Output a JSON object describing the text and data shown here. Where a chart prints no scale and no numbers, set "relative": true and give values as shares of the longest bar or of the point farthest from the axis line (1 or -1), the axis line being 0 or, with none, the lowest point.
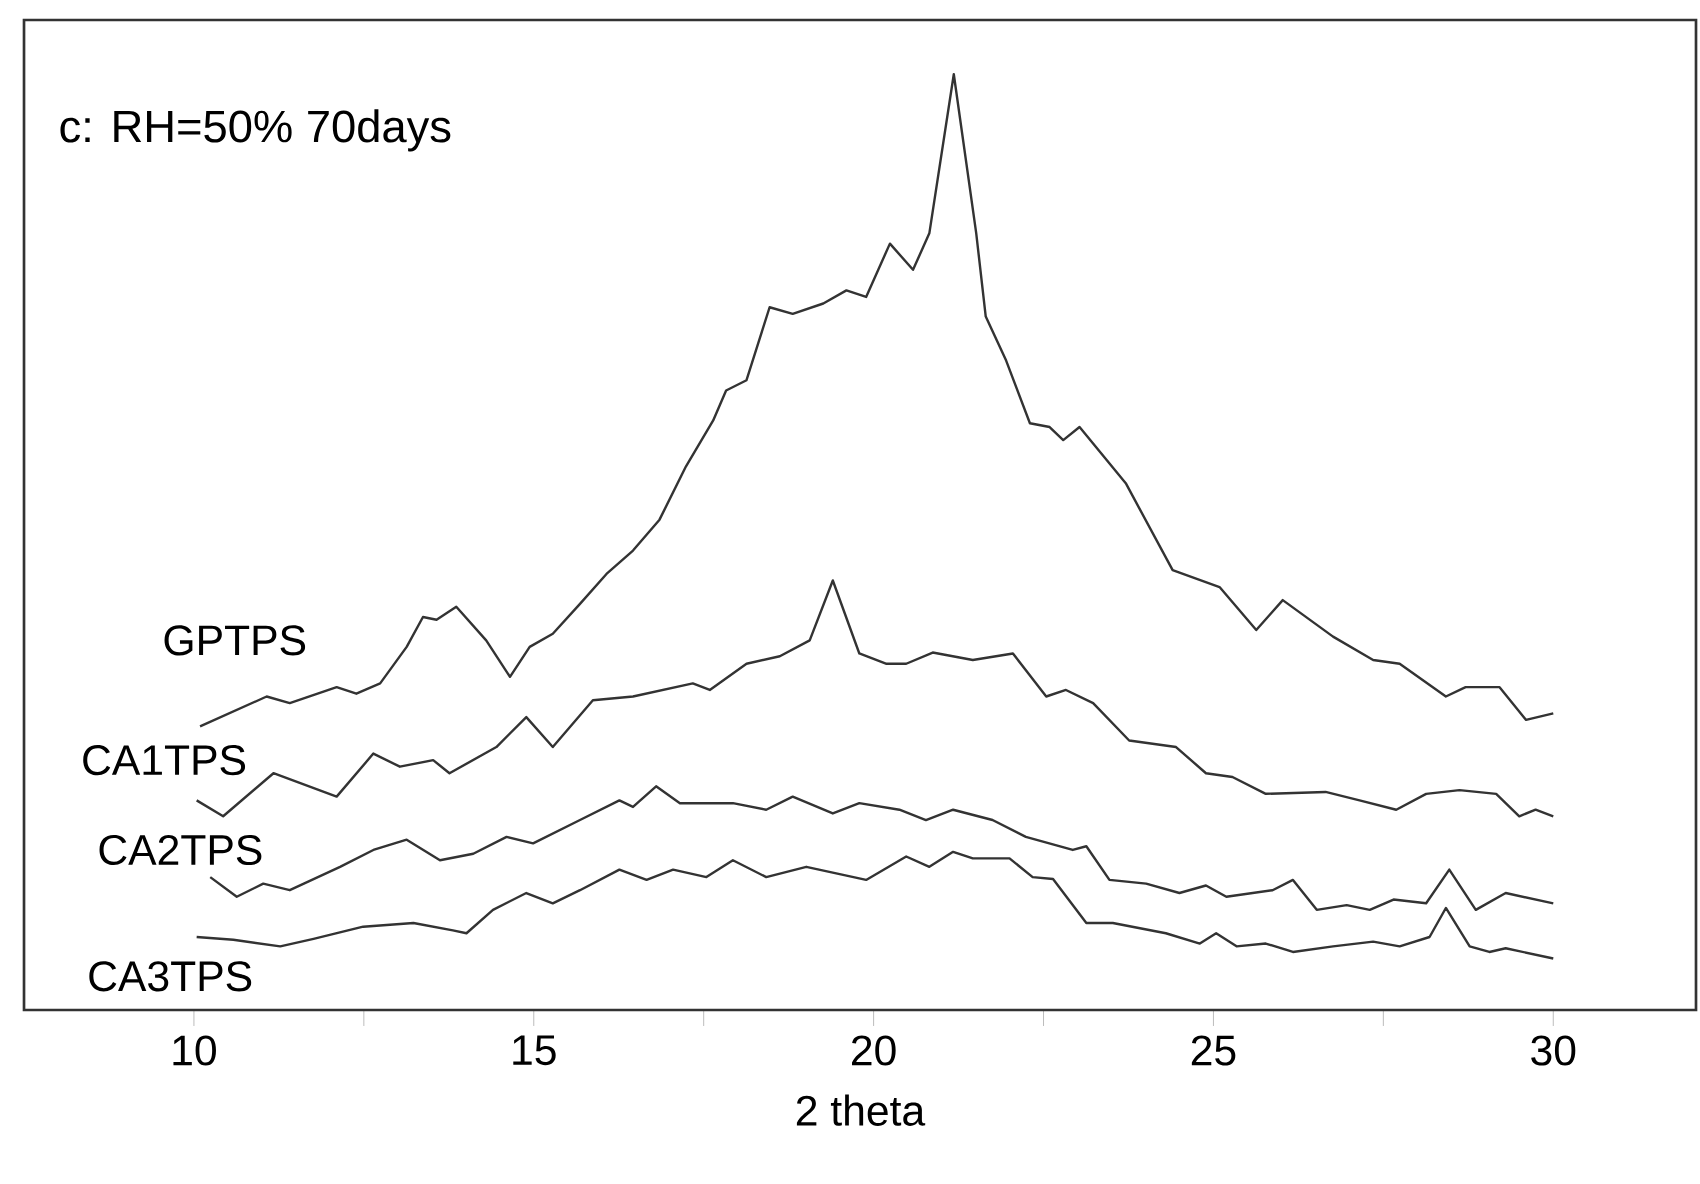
{
  "chart_data": {
    "type": "line",
    "title": "c: RH=50%  70days",
    "xlabel": "2 theta",
    "relative": true,
    "xlim": [
      7.5,
      32.1
    ],
    "xticks": [
      10,
      {
        "value": 12.5,
        "label": null
      },
      15,
      {
        "value": 17.5,
        "label": null
      },
      20,
      {
        "value": 22.5,
        "label": null
      },
      25,
      {
        "value": 27.5,
        "label": null
      },
      30
    ],
    "series": [
      {
        "name": "GPTPS",
        "color": "#333333",
        "x": [
          10.09,
          11.07,
          11.41,
          12.1,
          12.39,
          12.74,
          13.13,
          13.37,
          13.57,
          13.86,
          14.3,
          14.65,
          14.94,
          15.28,
          15.68,
          16.07,
          16.46,
          16.85,
          17.24,
          17.64,
          17.83,
          18.13,
          18.47,
          18.81,
          19.26,
          19.6,
          19.89,
          20.24,
          20.58,
          20.82,
          21.18,
          21.51,
          21.65,
          21.95,
          22.3,
          22.59,
          22.79,
          23.03,
          23.71,
          24.4,
          25.09,
          25.63,
          26.02,
          26.76,
          27.35,
          27.74,
          28.42,
          28.71,
          29.21,
          29.6,
          30.0
        ],
        "values": [
          0.303,
          0.335,
          0.328,
          0.345,
          0.338,
          0.349,
          0.388,
          0.42,
          0.417,
          0.431,
          0.395,
          0.356,
          0.388,
          0.402,
          0.434,
          0.466,
          0.491,
          0.524,
          0.581,
          0.63,
          0.662,
          0.673,
          0.751,
          0.744,
          0.755,
          0.769,
          0.762,
          0.819,
          0.791,
          0.83,
          1.0,
          0.83,
          0.741,
          0.694,
          0.627,
          0.623,
          0.609,
          0.623,
          0.563,
          0.47,
          0.452,
          0.406,
          0.438,
          0.399,
          0.374,
          0.37,
          0.335,
          0.345,
          0.345,
          0.31,
          0.317
        ]
      },
      {
        "name": "CA1TPS",
        "color": "#333333",
        "x": [
          10.04,
          10.43,
          11.17,
          12.1,
          12.64,
          13.03,
          13.52,
          13.76,
          14.45,
          14.89,
          15.28,
          15.87,
          16.46,
          17.34,
          17.59,
          18.13,
          18.62,
          19.06,
          19.4,
          19.79,
          20.19,
          20.48,
          20.87,
          21.46,
          22.05,
          22.54,
          22.83,
          23.23,
          23.76,
          24.45,
          24.89,
          25.28,
          25.77,
          26.65,
          27.15,
          27.69,
          28.13,
          28.62,
          29.16,
          29.5,
          29.74,
          30.0
        ],
        "values": [
          0.224,
          0.207,
          0.253,
          0.228,
          0.274,
          0.26,
          0.267,
          0.253,
          0.281,
          0.313,
          0.281,
          0.331,
          0.335,
          0.349,
          0.342,
          0.37,
          0.378,
          0.395,
          0.459,
          0.381,
          0.37,
          0.37,
          0.382,
          0.374,
          0.381,
          0.335,
          0.342,
          0.328,
          0.288,
          0.281,
          0.253,
          0.249,
          0.231,
          0.233,
          0.224,
          0.214,
          0.231,
          0.235,
          0.231,
          0.207,
          0.214,
          0.207
        ]
      },
      {
        "name": "CA2TPS",
        "color": "#333333",
        "x": [
          10.24,
          10.63,
          11.02,
          11.41,
          12.15,
          12.64,
          13.13,
          13.62,
          14.11,
          14.6,
          14.99,
          15.68,
          16.26,
          16.46,
          16.8,
          17.15,
          17.93,
          18.42,
          18.81,
          19.4,
          19.79,
          20.38,
          20.77,
          21.17,
          21.75,
          22.24,
          22.93,
          23.13,
          23.47,
          24.01,
          24.5,
          24.89,
          25.19,
          25.87,
          26.17,
          26.52,
          26.96,
          27.3,
          27.65,
          28.13,
          28.47,
          28.86,
          29.3,
          30.0
        ],
        "values": [
          0.142,
          0.121,
          0.135,
          0.128,
          0.153,
          0.171,
          0.182,
          0.16,
          0.167,
          0.185,
          0.178,
          0.203,
          0.224,
          0.217,
          0.239,
          0.221,
          0.221,
          0.214,
          0.228,
          0.21,
          0.221,
          0.214,
          0.203,
          0.214,
          0.203,
          0.185,
          0.171,
          0.175,
          0.139,
          0.135,
          0.125,
          0.133,
          0.121,
          0.128,
          0.139,
          0.107,
          0.112,
          0.107,
          0.118,
          0.114,
          0.15,
          0.107,
          0.125,
          0.114
        ]
      },
      {
        "name": "CA3TPS",
        "color": "#333333",
        "x": [
          10.04,
          10.58,
          11.27,
          11.76,
          12.49,
          13.23,
          13.81,
          14.01,
          14.4,
          14.89,
          15.28,
          15.68,
          16.26,
          16.66,
          17.05,
          17.54,
          17.93,
          18.42,
          19.01,
          19.89,
          20.48,
          20.82,
          21.17,
          21.46,
          22.0,
          22.34,
          22.64,
          23.13,
          23.52,
          24.3,
          24.8,
          25.04,
          25.34,
          25.77,
          26.17,
          26.76,
          27.35,
          27.74,
          28.18,
          28.42,
          28.77,
          29.06,
          29.3,
          30.0
        ],
        "values": [
          0.078,
          0.075,
          0.068,
          0.076,
          0.089,
          0.093,
          0.085,
          0.082,
          0.107,
          0.125,
          0.114,
          0.128,
          0.15,
          0.139,
          0.15,
          0.142,
          0.16,
          0.142,
          0.153,
          0.139,
          0.164,
          0.153,
          0.169,
          0.162,
          0.162,
          0.142,
          0.14,
          0.093,
          0.093,
          0.082,
          0.071,
          0.082,
          0.068,
          0.071,
          0.062,
          0.068,
          0.073,
          0.068,
          0.078,
          0.109,
          0.068,
          0.062,
          0.066,
          0.055
        ]
      }
    ]
  }
}
